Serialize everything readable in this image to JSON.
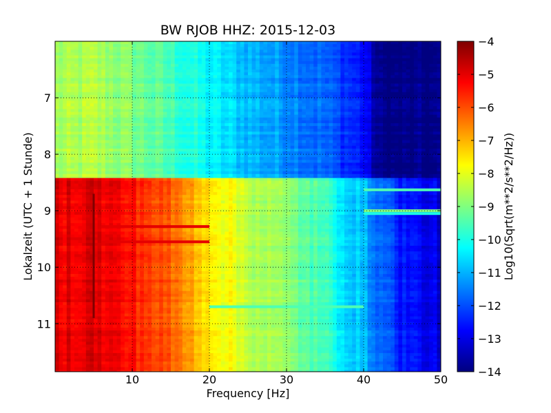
{
  "chart_data": {
    "type": "heatmap",
    "title": "BW RJOB HHZ: 2015-12-03",
    "xlabel": "Frequency [Hz]",
    "ylabel": "Lokalzeit (UTC + 1 Stunde)",
    "xlim": [
      0,
      50
    ],
    "ylim": [
      6.0,
      11.85
    ],
    "y_inverted": true,
    "grid": true,
    "xticks": [
      10,
      20,
      30,
      40,
      50
    ],
    "yticks": [
      7,
      8,
      9,
      10,
      11
    ],
    "colormap": "jet",
    "colorbar": {
      "label": "Log10(Sqrt(m**2/s**2/Hz))",
      "range": [
        -14,
        -4
      ],
      "ticks": [
        -4,
        -5,
        -6,
        -7,
        -8,
        -9,
        -10,
        -11,
        -12,
        -13,
        -14
      ]
    },
    "regimes": [
      {
        "time_range": [
          6.0,
          8.42
        ],
        "freq_hz": [
          0,
          5,
          10,
          15,
          20,
          25,
          30,
          35,
          40,
          42,
          50
        ],
        "level": [
          -8.7,
          -8.5,
          -9.0,
          -9.6,
          -10.3,
          -10.9,
          -11.3,
          -11.8,
          -12.6,
          -14.0,
          -14.0
        ]
      },
      {
        "time_range": [
          8.42,
          11.85
        ],
        "freq_hz": [
          0,
          5,
          10,
          15,
          20,
          25,
          30,
          35,
          40,
          45,
          50
        ],
        "level": [
          -5.0,
          -4.9,
          -5.4,
          -6.2,
          -7.4,
          -8.3,
          -8.9,
          -9.7,
          -11.0,
          -12.5,
          -13.1
        ]
      }
    ],
    "features": [
      {
        "kind": "line",
        "time": 8.63,
        "freq_range": [
          40,
          50
        ],
        "level": -9.5
      },
      {
        "kind": "line",
        "time": 9.0,
        "freq_range": [
          40,
          50
        ],
        "level": -9.0
      },
      {
        "kind": "line",
        "time": 9.05,
        "freq_range": [
          40,
          50
        ],
        "level": -10.0
      },
      {
        "kind": "line",
        "time": 9.28,
        "freq_range": [
          6,
          20
        ],
        "level": -5.0
      },
      {
        "kind": "line",
        "time": 9.55,
        "freq_range": [
          6,
          20
        ],
        "level": -5.0
      },
      {
        "kind": "line",
        "time": 10.7,
        "freq_range": [
          20,
          40
        ],
        "level": -9.5
      },
      {
        "kind": "vertical",
        "freq": 5.0,
        "time_range": [
          8.7,
          10.9
        ],
        "level": -4.0
      }
    ]
  }
}
